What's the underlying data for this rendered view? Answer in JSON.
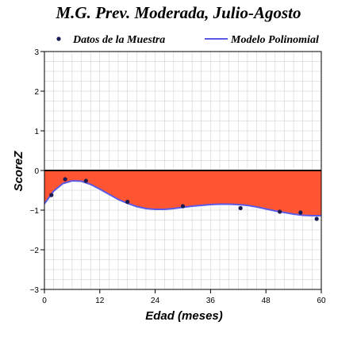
{
  "colors": {
    "fill": "#ff5533",
    "line": "#5a5ae6",
    "points": "#1a1a55",
    "grid": "#c8c8c8",
    "zero_line": "#000000"
  },
  "chart_data": {
    "type": "line",
    "title": "M.G. Prev. Moderada, Julio-Agosto",
    "xlabel": "Edad (meses)",
    "ylabel": "ScoreZ",
    "xlim": [
      0,
      60
    ],
    "ylim": [
      -3,
      3
    ],
    "x_ticks": [
      0,
      12,
      24,
      36,
      48,
      60
    ],
    "y_ticks": [
      -3,
      -2,
      -1,
      0,
      1,
      2,
      3
    ],
    "y_tick_labels": [
      "−3",
      "−2",
      "−1",
      "0",
      "1",
      "2",
      "3"
    ],
    "grid": true,
    "legend_position": "top",
    "fill_to_zero": true,
    "series": [
      {
        "name": "Datos de la Muestra",
        "kind": "scatter",
        "x": [
          1.5,
          4.5,
          9,
          18,
          30,
          42.5,
          51,
          55.5,
          59
        ],
        "y": [
          -0.62,
          -0.22,
          -0.26,
          -0.79,
          -0.9,
          -0.95,
          -1.04,
          -1.06,
          -1.22
        ]
      },
      {
        "name": "Modelo Polinomial",
        "kind": "line",
        "x": [
          0,
          2,
          4,
          6,
          8,
          10,
          12,
          14,
          16,
          18,
          20,
          22,
          24,
          26,
          28,
          30,
          32,
          34,
          36,
          38,
          40,
          42,
          44,
          46,
          48,
          50,
          52,
          54,
          56,
          58,
          60
        ],
        "y": [
          -0.84,
          -0.52,
          -0.33,
          -0.26,
          -0.27,
          -0.35,
          -0.47,
          -0.6,
          -0.73,
          -0.83,
          -0.91,
          -0.96,
          -0.98,
          -0.98,
          -0.96,
          -0.93,
          -0.9,
          -0.88,
          -0.86,
          -0.85,
          -0.85,
          -0.86,
          -0.88,
          -0.92,
          -0.97,
          -1.02,
          -1.06,
          -1.1,
          -1.13,
          -1.14,
          -1.14
        ]
      }
    ]
  }
}
